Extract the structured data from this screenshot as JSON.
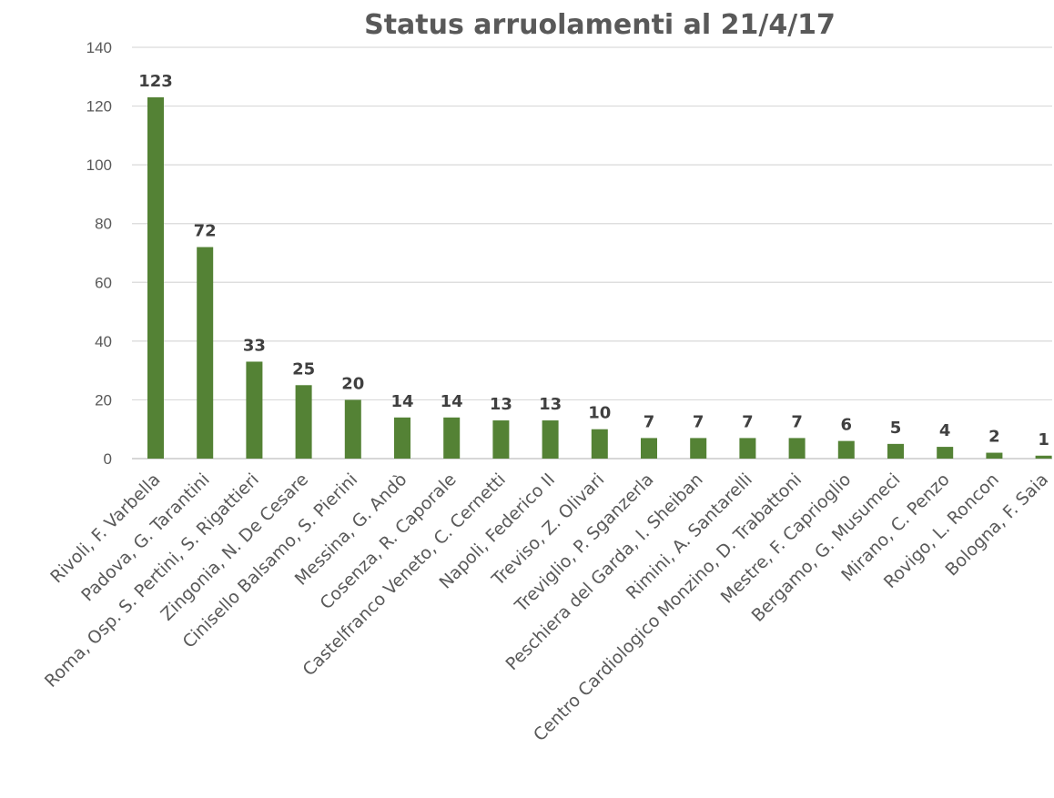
{
  "chart_data": {
    "type": "bar",
    "title": "Status arruolamenti al 21/4/17",
    "xlabel": "",
    "ylabel": "",
    "ylim": [
      0,
      140
    ],
    "yticks": [
      0,
      20,
      40,
      60,
      80,
      100,
      120,
      140
    ],
    "grid": true,
    "legend": "none",
    "bar_color": "#548235",
    "categories": [
      "Rivoli, F. Varbella",
      "Padova, G. Tarantini",
      "Roma, Osp. S. Pertini, S. Rigattieri",
      "Zingonia, N. De Cesare",
      "Cinisello Balsamo, S. Pierini",
      "Messina, G. Andò",
      "Cosenza, R. Caporale",
      "Castelfranco Veneto, C. Cernetti",
      "Napoli, Federico II",
      "Treviso, Z. Olivari",
      "Treviglio, P. Sganzerla",
      "Peschiera del Garda, I. Sheiban",
      "Rimini, A. Santarelli",
      "Centro Cardiologico Monzino, D. Trabattoni",
      "Mestre, F. Caprioglio",
      "Bergamo, G. Musumeci",
      "Mirano, C. Penzo",
      "Rovigo, L. Roncon",
      "Bologna, F. Saia"
    ],
    "values": [
      123,
      72,
      33,
      25,
      20,
      14,
      14,
      13,
      13,
      10,
      7,
      7,
      7,
      7,
      6,
      5,
      4,
      2,
      1
    ]
  }
}
